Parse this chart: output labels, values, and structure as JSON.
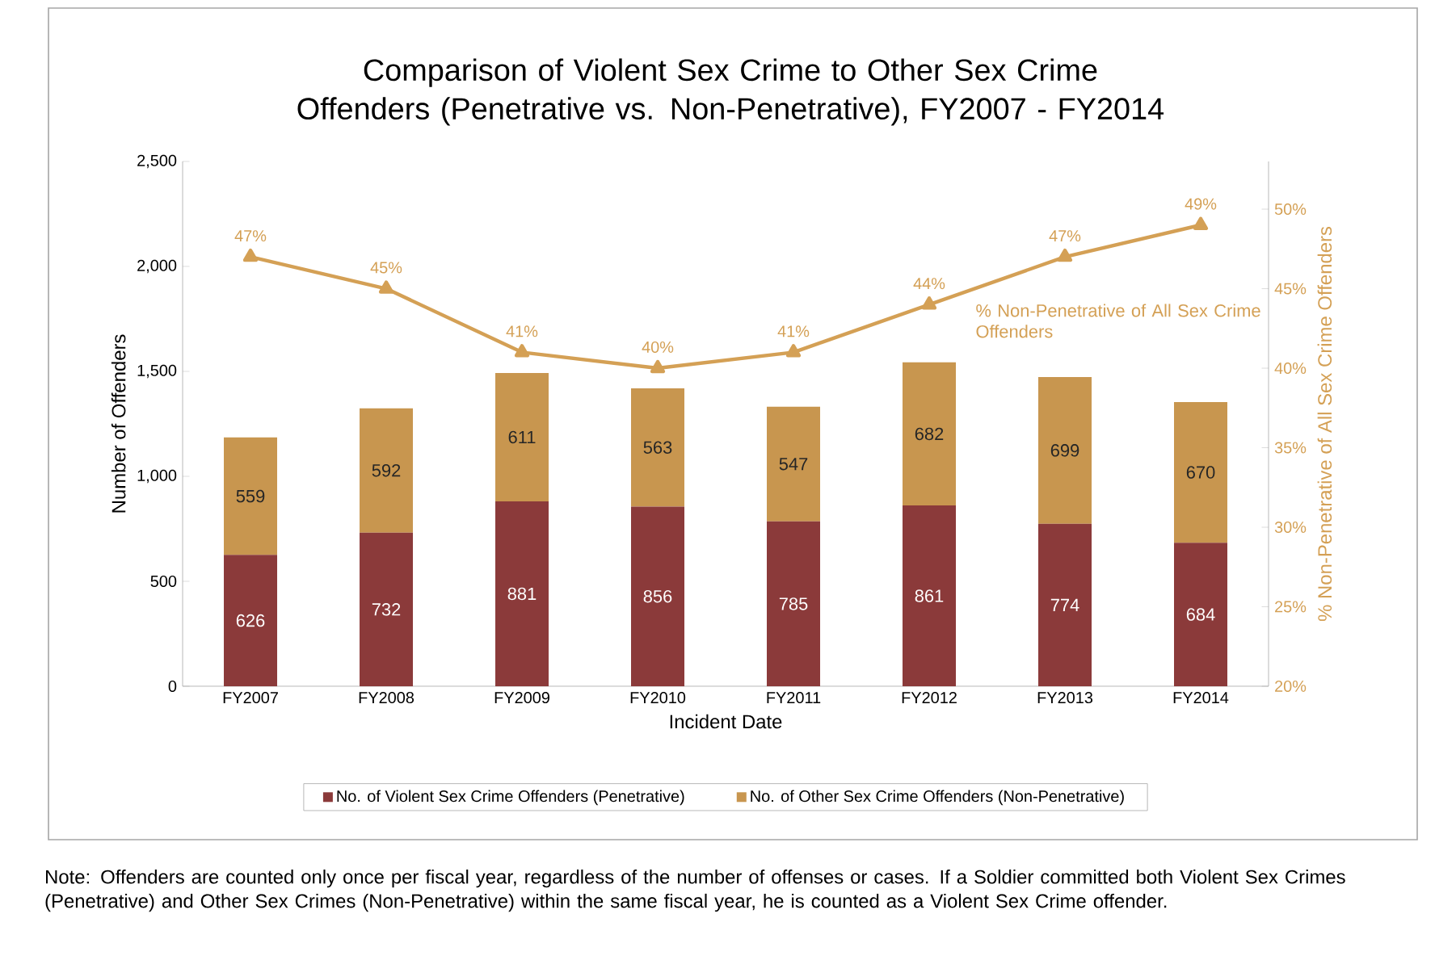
{
  "chart_data": {
    "type": "bar",
    "title": "Comparison of Violent Sex Crime to Other Sex Crime Offenders (Penetrative vs. Non-Penetrative), FY2007 - FY2014",
    "xlabel": "Incident Date",
    "ylabel": "Number of Offenders",
    "y2label": "% Non-Penetrative of All Sex Crime Offenders",
    "categories": [
      "FY2007",
      "FY2008",
      "FY2009",
      "FY2010",
      "FY2011",
      "FY2012",
      "FY2013",
      "FY2014"
    ],
    "stacked": true,
    "data_labels": true,
    "legend": "bottom",
    "grid": false,
    "ylim": [
      0,
      2500
    ],
    "yticks": [
      {
        "value": 0,
        "label": "0"
      },
      {
        "value": 500,
        "label": "500"
      },
      {
        "value": 1000,
        "label": "1,000"
      },
      {
        "value": 1500,
        "label": "1,500"
      },
      {
        "value": 2000,
        "label": "2,000"
      },
      {
        "value": 2500,
        "label": "2,500"
      }
    ],
    "y2lim": [
      20,
      53
    ],
    "y2ticks": [
      {
        "value": 20,
        "label": "20%"
      },
      {
        "value": 25,
        "label": "25%"
      },
      {
        "value": 30,
        "label": "30%"
      },
      {
        "value": 35,
        "label": "35%"
      },
      {
        "value": 40,
        "label": "40%"
      },
      {
        "value": 45,
        "label": "45%"
      },
      {
        "value": 50,
        "label": "50%"
      }
    ],
    "series": [
      {
        "name": "No. of Violent Sex Crime Offenders (Penetrative)",
        "color": "#8b3a3a",
        "values": [
          626,
          732,
          881,
          856,
          785,
          861,
          774,
          684
        ]
      },
      {
        "name": "No. of Other Sex Crime Offenders (Non-Penetrative)",
        "color": "#c8964f",
        "values": [
          559,
          592,
          611,
          563,
          547,
          682,
          699,
          670
        ]
      },
      {
        "name": "% Non-Penetrative of All Sex Crime Offenders",
        "type": "line",
        "axis": "y2",
        "color": "#d4a055",
        "marker": "triangle",
        "values": [
          47,
          45,
          41,
          40,
          41,
          44,
          47,
          49
        ],
        "value_labels": [
          "47%",
          "45%",
          "41%",
          "40%",
          "41%",
          "44%",
          "47%",
          "49%"
        ]
      }
    ],
    "annotations": [
      "Note: Offenders are counted only once per fiscal year, regardless of the number of offenses or cases. If a Soldier committed both Violent Sex Crimes (Penetrative) and Other Sex Crimes (Non-Penetrative) within the same fiscal year, he is counted as a Violent Sex Crime offender."
    ]
  }
}
